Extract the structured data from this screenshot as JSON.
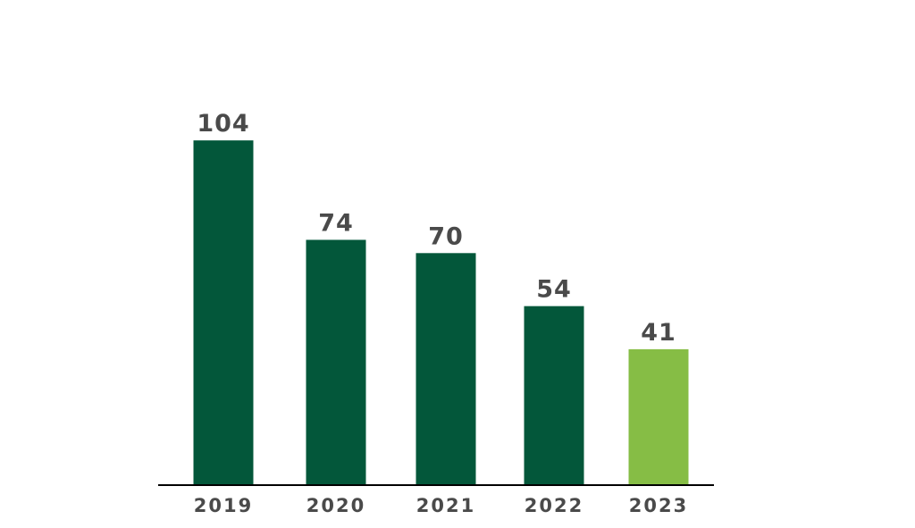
{
  "chart_data": {
    "type": "bar",
    "categories": [
      "2019",
      "2020",
      "2021",
      "2022",
      "2023"
    ],
    "values": [
      104,
      74,
      70,
      54,
      41
    ],
    "title": "",
    "xlabel": "",
    "ylabel": "",
    "ylim": [
      0,
      120
    ],
    "grid": false,
    "data_labels": true,
    "colors": {
      "default_bar": "#03573A",
      "highlight_bar": "#86BD45",
      "axis": "#000000",
      "text": "#4A4A4A"
    },
    "highlight_index": 4
  }
}
